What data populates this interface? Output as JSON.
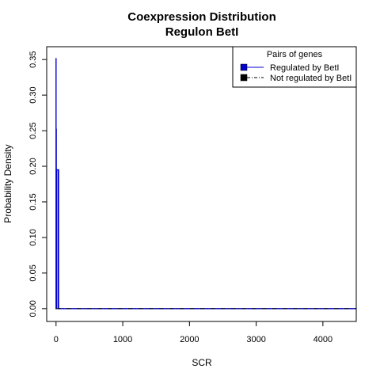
{
  "chart_data": {
    "type": "line",
    "title": "Coexpression Distribution",
    "subtitle": "Regulon BetI",
    "xlabel": "SCR",
    "ylabel": "Probability Density",
    "xlim": [
      -140,
      4500
    ],
    "ylim": [
      -0.018,
      0.368
    ],
    "x_ticks": [
      0,
      1000,
      2000,
      3000,
      4000
    ],
    "y_ticks": [
      0.0,
      0.05,
      0.1,
      0.15,
      0.2,
      0.25,
      0.3,
      0.35
    ],
    "x_tick_labels": [
      "0",
      "1000",
      "2000",
      "3000",
      "4000"
    ],
    "y_tick_labels": [
      "0.00",
      "0.05",
      "0.10",
      "0.15",
      "0.20",
      "0.25",
      "0.30",
      "0.35"
    ],
    "grid": false,
    "legend": {
      "title": "Pairs of genes",
      "position": "top-right",
      "entries": [
        "Regulated by  BetI",
        "Not regulated by  BetI"
      ]
    },
    "series": [
      {
        "name": "Regulated by  BetI",
        "color": "#0000cc",
        "line_style": "solid",
        "x": [
          0,
          0,
          0,
          2,
          2,
          4,
          4,
          6,
          6,
          30,
          30,
          32,
          32,
          38,
          38,
          4500
        ],
        "y": [
          0,
          0.352,
          0,
          0,
          0.252,
          0.252,
          0,
          0,
          0.195,
          0.195,
          0,
          0,
          0.195,
          0.195,
          0,
          0
        ]
      },
      {
        "name": "Not regulated by  BetI",
        "color": "#000000",
        "line_style": "dashdot",
        "x": [
          0,
          4500
        ],
        "y": [
          0,
          0
        ]
      }
    ]
  }
}
